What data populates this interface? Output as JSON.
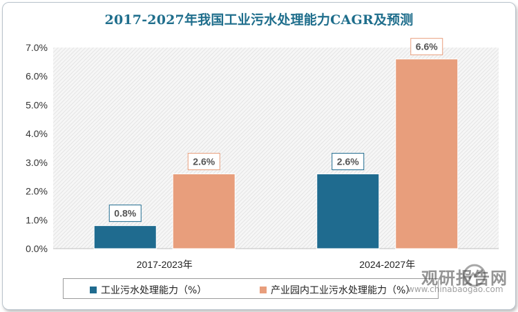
{
  "title": "2017-2027年我国工业污水处理能力CAGR及预测",
  "chart_data": {
    "type": "bar",
    "categories": [
      "2017-2023年",
      "2024-2027年"
    ],
    "series": [
      {
        "name": "工业污水处理能力（%）",
        "values": [
          0.8,
          2.6
        ],
        "color": "#1f6b8f"
      },
      {
        "name": "产业园内工业污水处理能力（%）",
        "values": [
          2.6,
          6.6
        ],
        "color": "#e89e7c"
      }
    ],
    "data_labels": [
      [
        "0.8%",
        "2.6%"
      ],
      [
        "2.6%",
        "6.6%"
      ]
    ],
    "y_ticks": [
      "0.0%",
      "1.0%",
      "2.0%",
      "3.0%",
      "4.0%",
      "5.0%",
      "6.0%",
      "7.0%"
    ],
    "ylim": [
      0,
      7
    ],
    "grid": false,
    "legend_position": "bottom"
  },
  "watermark": {
    "text": "观研报告网",
    "url": "www.chinabaogao.com"
  }
}
